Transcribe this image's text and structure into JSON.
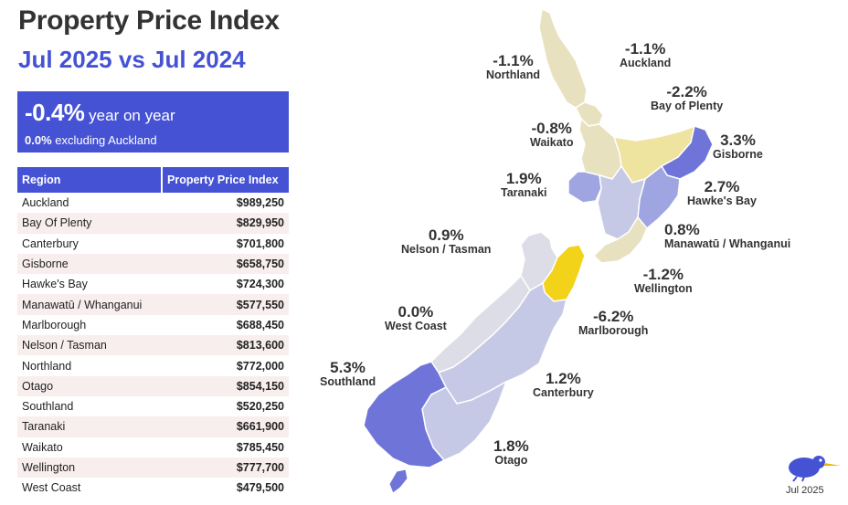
{
  "title": "Property Price Index",
  "subtitle": "Jul 2025 vs Jul 2024",
  "kpi": {
    "value": "-0.4%",
    "value_suffix": "year on year",
    "sub_value": "0.0%",
    "sub_text": "excluding Auckland"
  },
  "table": {
    "headers": [
      "Region",
      "Property Price Index"
    ],
    "rows": [
      {
        "region": "Auckland",
        "value": "$989,250"
      },
      {
        "region": "Bay Of Plenty",
        "value": "$829,950"
      },
      {
        "region": "Canterbury",
        "value": "$701,800"
      },
      {
        "region": "Gisborne",
        "value": "$658,750"
      },
      {
        "region": "Hawke's Bay",
        "value": "$724,300"
      },
      {
        "region": "Manawatū / Whanganui",
        "value": "$577,550"
      },
      {
        "region": "Marlborough",
        "value": "$688,450"
      },
      {
        "region": "Nelson / Tasman",
        "value": "$813,600"
      },
      {
        "region": "Northland",
        "value": "$772,000"
      },
      {
        "region": "Otago",
        "value": "$854,150"
      },
      {
        "region": "Southland",
        "value": "$520,250"
      },
      {
        "region": "Taranaki",
        "value": "$661,900"
      },
      {
        "region": "Waikato",
        "value": "$785,450"
      },
      {
        "region": "Wellington",
        "value": "$777,700"
      },
      {
        "region": "West Coast",
        "value": "$479,500"
      }
    ]
  },
  "map_labels": {
    "northland": {
      "pct": "-1.1%",
      "region": "Northland"
    },
    "auckland": {
      "pct": "-1.1%",
      "region": "Auckland"
    },
    "bay_of_plenty": {
      "pct": "-2.2%",
      "region": "Bay of Plenty"
    },
    "waikato": {
      "pct": "-0.8%",
      "region": "Waikato"
    },
    "gisborne": {
      "pct": "3.3%",
      "region": "Gisborne"
    },
    "taranaki": {
      "pct": "1.9%",
      "region": "Taranaki"
    },
    "hawkes_bay": {
      "pct": "2.7%",
      "region": "Hawke's Bay"
    },
    "nelson_tasman": {
      "pct": "0.9%",
      "region": "Nelson / Tasman"
    },
    "manawatu": {
      "pct": "0.8%",
      "region": "Manawatū / Whanganui"
    },
    "wellington": {
      "pct": "-1.2%",
      "region": "Wellington"
    },
    "west_coast": {
      "pct": "0.0%",
      "region": "West Coast"
    },
    "marlborough": {
      "pct": "-6.2%",
      "region": "Marlborough"
    },
    "southland": {
      "pct": "5.3%",
      "region": "Southland"
    },
    "canterbury": {
      "pct": "1.2%",
      "region": "Canterbury"
    },
    "otago": {
      "pct": "1.8%",
      "region": "Otago"
    }
  },
  "date_label": "Jul 2025",
  "colors": {
    "accent": "#4552d4",
    "negative_fill": "#e8e1bf",
    "bop_fill": "#efe3a0",
    "marlborough_fill": "#f3d21a",
    "positive_light": "#c6c9e6",
    "positive_mid": "#9ea5e0",
    "positive_strong": "#6f75d8",
    "neutral_fill": "#dcdde6"
  },
  "icons": {
    "logo": "kiwi-bird-icon"
  }
}
